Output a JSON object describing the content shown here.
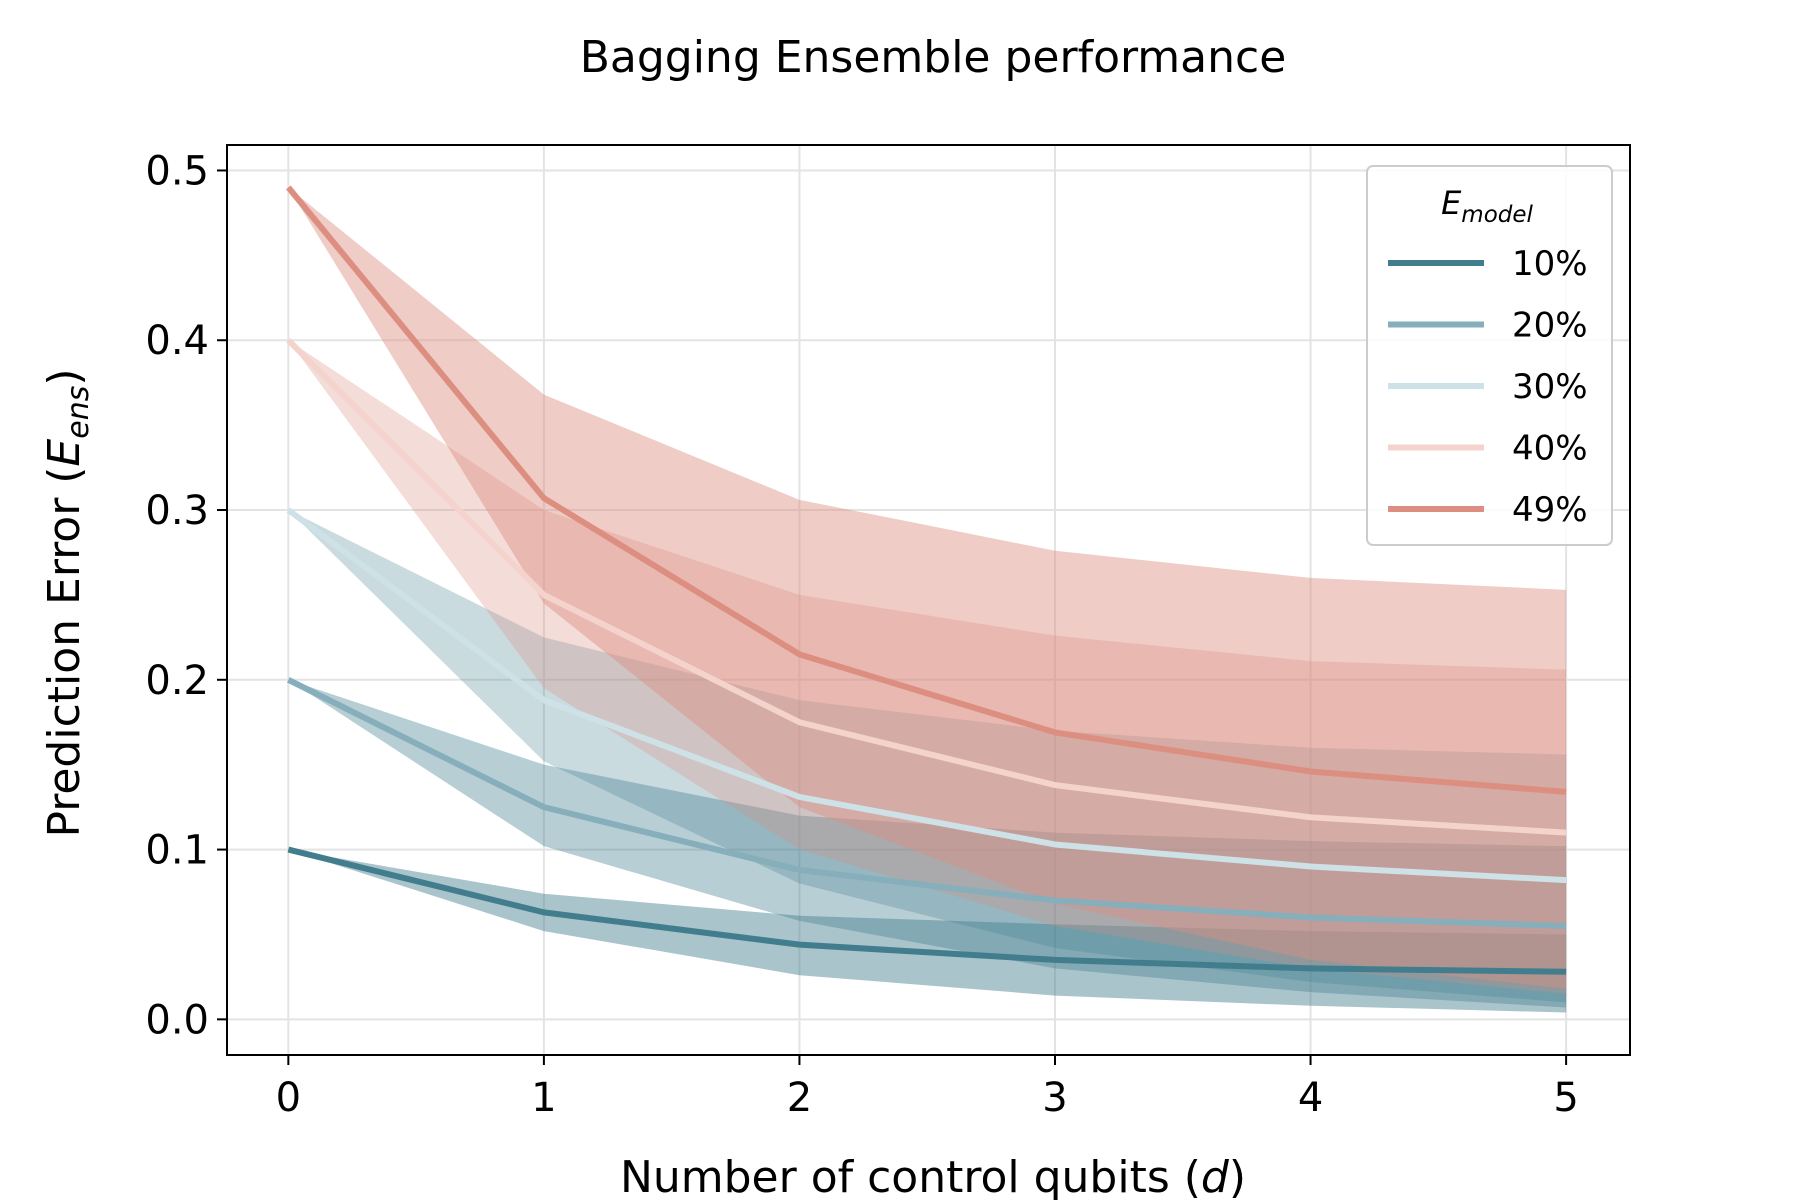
{
  "chart_data": {
    "type": "line",
    "title": "Bagging Ensemble performance",
    "xlabel": "Number of control qubits (d)",
    "xlabel_parts": {
      "pre": "Number of control qubits (",
      "var": "d",
      "post": ")"
    },
    "ylabel": "Prediction Error (E_ens)",
    "ylabel_parts": {
      "pre": "Prediction Error (",
      "var": "E",
      "sub": "ens",
      "post": ")"
    },
    "x": [
      0,
      1,
      2,
      3,
      4,
      5
    ],
    "xticks": [
      "0",
      "1",
      "2",
      "3",
      "4",
      "5"
    ],
    "yticks": [
      "0.0",
      "0.1",
      "0.2",
      "0.3",
      "0.4",
      "0.5"
    ],
    "xlim": [
      -0.24,
      5.25
    ],
    "ylim": [
      -0.021,
      0.515
    ],
    "grid": true,
    "legend": {
      "title": "E_model",
      "title_parts": {
        "var": "E",
        "sub": "model"
      },
      "placement": "top-right"
    },
    "series": [
      {
        "name": "10%",
        "color": "#427d8e",
        "line_opacity": 1.0,
        "values": [
          0.1,
          0.063,
          0.044,
          0.035,
          0.03,
          0.028
        ],
        "lower": [
          0.1,
          0.052,
          0.026,
          0.014,
          0.008,
          0.004
        ],
        "upper": [
          0.1,
          0.074,
          0.061,
          0.056,
          0.052,
          0.05
        ]
      },
      {
        "name": "20%",
        "color": "#86aebb",
        "line_opacity": 1.0,
        "values": [
          0.2,
          0.125,
          0.088,
          0.07,
          0.06,
          0.055
        ],
        "lower": [
          0.2,
          0.102,
          0.058,
          0.03,
          0.016,
          0.007
        ],
        "upper": [
          0.2,
          0.15,
          0.12,
          0.11,
          0.105,
          0.102
        ]
      },
      {
        "name": "30%",
        "color": "#cde1e6",
        "line_opacity": 1.0,
        "values": [
          0.3,
          0.188,
          0.131,
          0.103,
          0.09,
          0.082
        ],
        "lower": [
          0.3,
          0.152,
          0.08,
          0.042,
          0.022,
          0.01
        ],
        "upper": [
          0.3,
          0.225,
          0.188,
          0.17,
          0.16,
          0.156
        ]
      },
      {
        "name": "40%",
        "color": "#f3d3cc",
        "line_opacity": 1.0,
        "values": [
          0.4,
          0.25,
          0.175,
          0.138,
          0.119,
          0.11
        ],
        "lower": [
          0.4,
          0.195,
          0.1,
          0.055,
          0.03,
          0.015
        ],
        "upper": [
          0.4,
          0.3,
          0.25,
          0.226,
          0.211,
          0.206
        ]
      },
      {
        "name": "49%",
        "color": "#dc8f81",
        "line_opacity": 1.0,
        "values": [
          0.49,
          0.307,
          0.215,
          0.169,
          0.146,
          0.134
        ],
        "lower": [
          0.49,
          0.245,
          0.125,
          0.068,
          0.035,
          0.018
        ],
        "upper": [
          0.49,
          0.368,
          0.306,
          0.276,
          0.26,
          0.253
        ]
      }
    ],
    "colors": {
      "band_dark": "#427d8e",
      "band_warm": "#dc8f81",
      "grid": "#e3e3e3",
      "axis": "#000000",
      "legend_border": "#cccccc"
    }
  }
}
